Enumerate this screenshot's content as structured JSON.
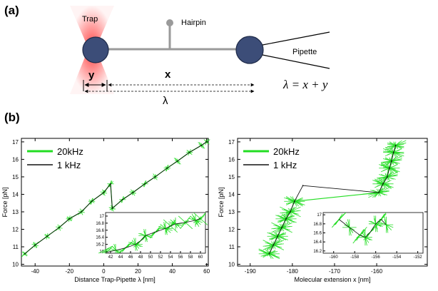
{
  "panel_a": {
    "label": "(a)",
    "trap_label": "Trap",
    "hairpin_label": "Hairpin",
    "pipette_label": "Pipette",
    "y_label": "y",
    "x_label": "x",
    "lambda_label": "λ",
    "formula": "λ = x + y",
    "colors": {
      "bead": "#3c4d78",
      "trap": "#e8303a",
      "tether": "#9a9a9a"
    }
  },
  "panel_b": {
    "label": "(b)"
  },
  "colors": {
    "green": "#22dd22",
    "black": "#111111"
  },
  "chart_data": [
    {
      "type": "line",
      "xlabel": "Distance Trap-Pipette λ [nm]",
      "ylabel": "Force [pN]",
      "xlim": [
        -48,
        61
      ],
      "ylim": [
        9.9,
        17.2
      ],
      "xticks": [
        -40,
        -20,
        0,
        20,
        40,
        60
      ],
      "yticks": [
        10,
        11,
        12,
        13,
        14,
        15,
        16,
        17
      ],
      "legend": {
        "position": "top-left",
        "entries": [
          "20kHz",
          "1 kHz"
        ]
      },
      "series": [
        {
          "name": "20kHz",
          "color": "#22dd22",
          "x": [
            -46,
            -40,
            -33,
            -26,
            -20,
            -13,
            -7,
            0,
            4,
            5,
            11,
            17,
            24,
            30,
            37,
            43,
            50,
            57,
            60
          ],
          "y": [
            10.6,
            11.1,
            11.6,
            12.1,
            12.6,
            13.0,
            13.6,
            14.1,
            14.6,
            13.2,
            13.7,
            14.1,
            14.6,
            15.0,
            15.5,
            15.9,
            16.4,
            16.8,
            17.0
          ]
        },
        {
          "name": "1 kHz",
          "color": "#111111",
          "x": [
            -46,
            -40,
            -33,
            -26,
            -20,
            -13,
            -7,
            0,
            4,
            5,
            11,
            17,
            24,
            30,
            37,
            43,
            50,
            57,
            60
          ],
          "y": [
            10.6,
            11.1,
            11.6,
            12.1,
            12.6,
            13.0,
            13.6,
            14.1,
            14.6,
            13.2,
            13.7,
            14.1,
            14.6,
            15.0,
            15.5,
            15.9,
            16.4,
            16.8,
            17.0
          ]
        }
      ],
      "inset": {
        "xlim": [
          41,
          61
        ],
        "ylim": [
          15.95,
          17.1
        ],
        "xticks": [
          42,
          44,
          46,
          48,
          50,
          52,
          54,
          56,
          58,
          60
        ],
        "yticks": [
          16,
          16.2,
          16.4,
          16.6,
          16.8,
          17
        ],
        "series": [
          {
            "name": "1 kHz",
            "x": [
              41,
              43,
              45,
              47,
              48,
              49,
              51,
              53,
              54,
              55,
              57,
              59,
              60
            ],
            "y": [
              15.97,
              16.03,
              16.1,
              16.2,
              16.3,
              16.45,
              16.55,
              16.65,
              16.72,
              16.78,
              16.82,
              16.88,
              16.93
            ]
          }
        ]
      }
    },
    {
      "type": "line",
      "xlabel": "Molecular extension x [nm]",
      "ylabel": "Force [pN]",
      "xlim": [
        -193,
        -148
      ],
      "ylim": [
        9.9,
        17.2
      ],
      "xticks": [
        -190,
        -180,
        -170,
        -160
      ],
      "yticks": [
        10,
        11,
        12,
        13,
        14,
        15,
        16,
        17
      ],
      "legend": {
        "position": "top-left",
        "entries": [
          "20kHz",
          "1 kHz"
        ]
      },
      "series": [
        {
          "name": "20kHz",
          "color": "#22dd22",
          "x": [
            -185.5,
            -184.5,
            -183.5,
            -182.5,
            -181.5,
            -180.5,
            -179.5,
            -159.5,
            -158.5,
            -157.5,
            -157.0,
            -156.5,
            -156.0,
            -155.5
          ],
          "y": [
            10.6,
            11.1,
            11.6,
            12.1,
            12.6,
            13.0,
            13.6,
            14.1,
            14.6,
            15.0,
            15.5,
            15.9,
            16.4,
            16.8
          ]
        },
        {
          "name": "1 kHz",
          "color": "#111111",
          "x": [
            -185.5,
            -184.5,
            -183.5,
            -182.5,
            -181.5,
            -180.5,
            -179.5,
            -177.5,
            -159.5,
            -158.5,
            -157.5,
            -157.0,
            -156.5,
            -156.0,
            -155.5
          ],
          "y": [
            10.6,
            11.1,
            11.6,
            12.1,
            12.6,
            13.0,
            13.6,
            14.5,
            14.1,
            14.6,
            15.0,
            15.5,
            15.9,
            16.4,
            16.8
          ]
        }
      ],
      "inset": {
        "xlim": [
          -161,
          -151.5
        ],
        "ylim": [
          16.15,
          17.05
        ],
        "xticks": [
          -160,
          -158,
          -156,
          -154,
          -152
        ],
        "yticks": [
          16.2,
          16.4,
          16.6,
          16.8,
          17
        ],
        "series": [
          {
            "name": "1 kHz",
            "x": [
              -159.5,
              -158.5,
              -157.5,
              -157.0,
              -156.5,
              -156.0,
              -155.5,
              -155.0
            ],
            "y": [
              16.9,
              16.72,
              16.55,
              16.5,
              16.62,
              16.8,
              16.9,
              16.78
            ]
          }
        ]
      }
    }
  ]
}
